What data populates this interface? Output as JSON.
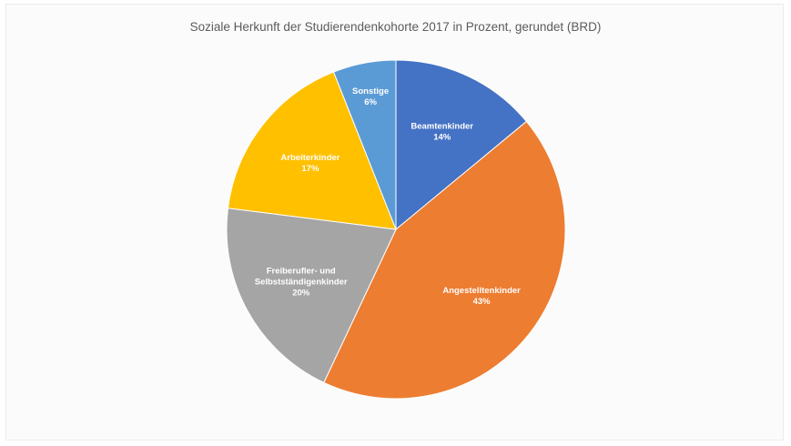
{
  "chart_data": {
    "type": "pie",
    "title": "Soziale Herkunft der Studierendenkohorte 2017 in Prozent, gerundet (BRD)",
    "slices": [
      {
        "name": "Beamtenkinder",
        "label_lines": [
          "Beamtenkinder"
        ],
        "value": 14,
        "display": "14%",
        "color": "#4472c4"
      },
      {
        "name": "Angestelltenkinder",
        "label_lines": [
          "Angestelltenkinder"
        ],
        "value": 43,
        "display": "43%",
        "color": "#ed7d31"
      },
      {
        "name": "Freiberufler- und Selbstständigenkinder",
        "label_lines": [
          "Freiberufler- und",
          "Selbstständigenkinder"
        ],
        "value": 20,
        "display": "20%",
        "color": "#a5a5a5"
      },
      {
        "name": "Arbeiterkinder",
        "label_lines": [
          "Arbeiterkinder"
        ],
        "value": 17,
        "display": "17%",
        "color": "#ffc000"
      },
      {
        "name": "Sonstige",
        "label_lines": [
          "Sonstige"
        ],
        "value": 6,
        "display": "6%",
        "color": "#5b9bd5"
      }
    ],
    "start_angle_deg": 0,
    "direction": "clockwise"
  }
}
